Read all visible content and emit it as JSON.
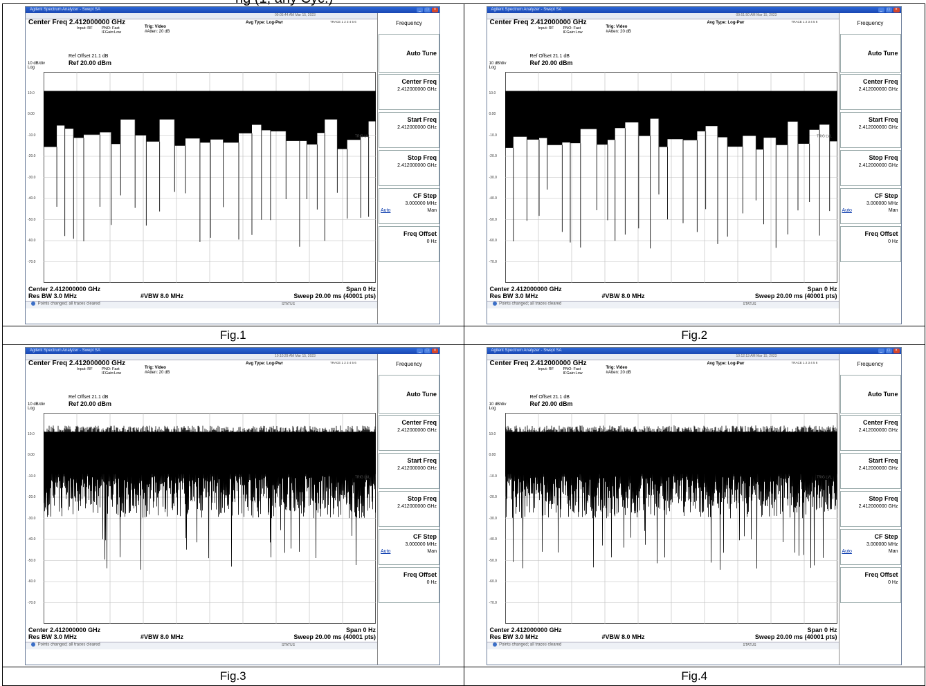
{
  "page": {
    "title_fragment": "ng (1, any Cyc.)"
  },
  "figures": [
    {
      "caption": "Fig.1",
      "window_title": "Agilent Spectrum Analyzer - Swept SA",
      "status_time": "09:05:44 AM Mar 15, 2023",
      "center_freq": "Center Freq  2.412000000 GHz",
      "input_info": "Input: RF",
      "pno_info": "PNO: Fast",
      "gate_info": "IFGain:Low",
      "trig": "Trig: Video",
      "atten": "#Atten: 20 dB",
      "avg_type": "Avg Type: Log-Pwr",
      "trace_info": "TRACE 1 2 3 4 5 6",
      "ref_offset": "Ref Offset 21.1 dB",
      "ref_level": "Ref 20.00 dBm",
      "db_div": "10 dB/div",
      "log": "Log",
      "y_ticks": [
        "10.0",
        "0.00",
        "-10.0",
        "-20.0",
        "-30.0",
        "-40.0",
        "-50.0",
        "-60.0",
        "-70.0"
      ],
      "trig_lvl": "TRIG LVL",
      "center_bottom": "Center 2.412000000 GHz",
      "span": "Span 0 Hz",
      "res_bw": "Res BW 3.0 MHz",
      "vbw": "#VBW 8.0 MHz",
      "sweep": "Sweep  20.00 ms (40001 pts)",
      "message": "Points changed; all traces cleared",
      "status_btn": "STATUS",
      "trace_style": "bursts",
      "trace_seed": 11
    },
    {
      "caption": "Fig.2",
      "window_title": "Agilent Spectrum Analyzer - Swept SA",
      "status_time": "09:51:50 AM Mar 15, 2023",
      "center_freq": "Center Freq  2.412000000 GHz",
      "input_info": "Input: RF",
      "pno_info": "PNO: Fast",
      "gate_info": "IFGain:Low",
      "trig": "Trig: Video",
      "atten": "#Atten: 20 dB",
      "avg_type": "Avg Type: Log-Pwr",
      "trace_info": "TRACE 1 2 3 4 5 6",
      "ref_offset": "Ref Offset 21.1 dB",
      "ref_level": "Ref 20.00 dBm",
      "db_div": "10 dB/div",
      "log": "Log",
      "y_ticks": [
        "10.0",
        "0.00",
        "-10.0",
        "-20.0",
        "-30.0",
        "-40.0",
        "-50.0",
        "-60.0",
        "-70.0"
      ],
      "trig_lvl": "TRIG LVL",
      "center_bottom": "Center 2.412000000 GHz",
      "span": "Span 0 Hz",
      "res_bw": "Res BW 3.0 MHz",
      "vbw": "#VBW 8.0 MHz",
      "sweep": "Sweep  20.00 ms (40001 pts)",
      "message": "Points changed; all traces cleared",
      "status_btn": "STATUS",
      "trace_style": "bursts",
      "trace_seed": 23
    },
    {
      "caption": "Fig.3",
      "window_title": "Agilent Spectrum Analyzer - Swept SA",
      "status_time": "10:10:29 AM Mar 15, 2023",
      "center_freq": "Center Freq  2.412000000 GHz",
      "input_info": "Input: RF",
      "pno_info": "PNO: Fast",
      "gate_info": "IFGain:Low",
      "trig": "Trig: Video",
      "atten": "#Atten: 20 dB",
      "avg_type": "Avg Type: Log-Pwr",
      "trace_info": "TRACE 1 2 3 4 5 6",
      "ref_offset": "Ref Offset 21.1 dB",
      "ref_level": "Ref 20.00 dBm",
      "db_div": "10 dB/div",
      "log": "Log",
      "y_ticks": [
        "10.0",
        "0.00",
        "-10.0",
        "-20.0",
        "-30.0",
        "-40.0",
        "-50.0",
        "-60.0",
        "-70.0"
      ],
      "trig_lvl": "TRIG LVL",
      "center_bottom": "Center 2.412000000 GHz",
      "span": "Span 0 Hz",
      "res_bw": "Res BW 3.0 MHz",
      "vbw": "#VBW 8.0 MHz",
      "sweep": "Sweep  20.00 ms (40001 pts)",
      "message": "Points changed; all traces cleared",
      "status_btn": "STATUS",
      "trace_style": "noise",
      "trace_seed": 37
    },
    {
      "caption": "Fig.4",
      "window_title": "Agilent Spectrum Analyzer - Swept SA",
      "status_time": "10:12:13 AM Mar 15, 2023",
      "center_freq": "Center Freq  2.412000000 GHz",
      "input_info": "Input: RF",
      "pno_info": "PNO: Fast",
      "gate_info": "IFGain:Low",
      "trig": "Trig: Video",
      "atten": "#Atten: 20 dB",
      "avg_type": "Avg Type: Log-Pwr",
      "trace_info": "TRACE 1 2 3 4 5 6",
      "ref_offset": "Ref Offset 21.1 dB",
      "ref_level": "Ref 20.00 dBm",
      "db_div": "10 dB/div",
      "log": "Log",
      "y_ticks": [
        "10.0",
        "0.00",
        "-10.0",
        "-20.0",
        "-30.0",
        "-40.0",
        "-50.0",
        "-60.0",
        "-70.0"
      ],
      "trig_lvl": "TRIG LVL",
      "center_bottom": "Center 2.412000000 GHz",
      "span": "Span 0 Hz",
      "res_bw": "Res BW 3.0 MHz",
      "vbw": "#VBW 8.0 MHz",
      "sweep": "Sweep  20.00 ms (40001 pts)",
      "message": "Points changed; all traces cleared",
      "status_btn": "STATUS",
      "trace_style": "noise",
      "trace_seed": 53
    }
  ],
  "panel": {
    "title": "Frequency",
    "auto_tune": "Auto Tune",
    "center_freq_label": "Center Freq",
    "center_freq_value": "2.412000000 GHz",
    "start_freq_label": "Start Freq",
    "start_freq_value": "2.412000000 GHz",
    "stop_freq_label": "Stop Freq",
    "stop_freq_value": "2.412000000 GHz",
    "cf_step_label": "CF Step",
    "cf_step_value": "3.000000 MHz",
    "cf_step_auto": "Auto",
    "cf_step_man": "Man",
    "freq_offset_label": "Freq Offset",
    "freq_offset_value": "0 Hz"
  }
}
